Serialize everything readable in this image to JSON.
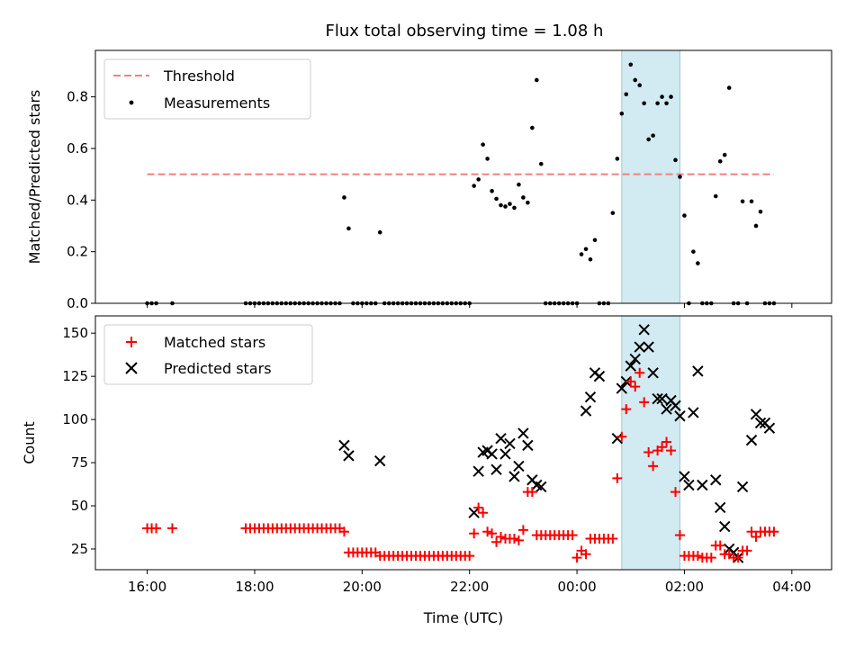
{
  "figure_title": "Flux total observing time = 1.08 h",
  "colors": {
    "threshold": "#f08080",
    "measurements": "#000000",
    "matched": "#ff0000",
    "predicted": "#000000",
    "span": "#add8e6"
  },
  "chart_data": [
    {
      "type": "scatter",
      "ylabel": "Matched/Predicted stars",
      "ylim": [
        0,
        0.98
      ],
      "yticks": [
        0.0,
        0.2,
        0.4,
        0.6,
        0.8
      ],
      "ytick_labels": [
        "0.0",
        "0.2",
        "0.4",
        "0.6",
        "0.8"
      ],
      "legend": {
        "placement": "upper-left",
        "entries": [
          "Threshold",
          "Measurements"
        ]
      },
      "threshold": {
        "name": "Threshold",
        "value": 0.5,
        "x_range": [
          "16:00",
          "03:40"
        ]
      },
      "highlight_span": [
        "00:50",
        "01:55"
      ],
      "series": [
        {
          "name": "Measurements",
          "x": [
            "16:00",
            "16:05",
            "16:10",
            "16:28",
            "17:50",
            "17:55",
            "18:00",
            "18:05",
            "18:10",
            "18:15",
            "18:20",
            "18:25",
            "18:30",
            "18:35",
            "18:40",
            "18:45",
            "18:50",
            "18:55",
            "19:00",
            "19:05",
            "19:10",
            "19:15",
            "19:20",
            "19:25",
            "19:30",
            "19:35",
            "19:40",
            "19:45",
            "19:50",
            "19:55",
            "20:00",
            "20:05",
            "20:10",
            "20:15",
            "20:20",
            "20:25",
            "20:30",
            "20:35",
            "20:40",
            "20:45",
            "20:50",
            "20:55",
            "21:00",
            "21:05",
            "21:10",
            "21:15",
            "21:20",
            "21:25",
            "21:30",
            "21:35",
            "21:40",
            "21:45",
            "21:50",
            "21:55",
            "22:00",
            "22:05",
            "22:10",
            "22:15",
            "22:20",
            "22:25",
            "22:30",
            "22:35",
            "22:40",
            "22:45",
            "22:50",
            "22:55",
            "23:00",
            "23:05",
            "23:10",
            "23:15",
            "23:20",
            "23:25",
            "23:30",
            "23:35",
            "23:40",
            "23:45",
            "23:50",
            "23:55",
            "00:00",
            "00:05",
            "00:10",
            "00:15",
            "00:20",
            "00:25",
            "00:30",
            "00:35",
            "00:40",
            "00:45",
            "00:50",
            "00:55",
            "01:00",
            "01:05",
            "01:10",
            "01:15",
            "01:20",
            "01:25",
            "01:30",
            "01:35",
            "01:40",
            "01:45",
            "01:50",
            "01:55",
            "02:00",
            "02:05",
            "02:10",
            "02:15",
            "02:20",
            "02:25",
            "02:30",
            "02:35",
            "02:40",
            "02:45",
            "02:50",
            "02:55",
            "03:00",
            "03:05",
            "03:10",
            "03:15",
            "03:20",
            "03:25",
            "03:30",
            "03:35",
            "03:40"
          ],
          "y": [
            0,
            0,
            0,
            0,
            0,
            0,
            0,
            0,
            0,
            0,
            0,
            0,
            0,
            0,
            0,
            0,
            0,
            0,
            0,
            0,
            0,
            0,
            0,
            0,
            0,
            0,
            0.41,
            0.29,
            0,
            0,
            0,
            0,
            0,
            0,
            0.275,
            0,
            0,
            0,
            0,
            0,
            0,
            0,
            0,
            0,
            0,
            0,
            0,
            0,
            0,
            0,
            0,
            0,
            0,
            0,
            0,
            0.455,
            0.48,
            0.615,
            0.56,
            0.435,
            0.405,
            0.38,
            0.375,
            0.385,
            0.37,
            0.46,
            0.41,
            0.39,
            0.68,
            0.865,
            0.54,
            0,
            0,
            0,
            0,
            0,
            0,
            0,
            0,
            0.19,
            0.21,
            0.17,
            0.245,
            0,
            0,
            0,
            0.35,
            0.56,
            0.735,
            0.81,
            0.925,
            0.865,
            0.845,
            0.775,
            0.635,
            0.65,
            0.775,
            0.8,
            0.775,
            0.8,
            0.555,
            0.49,
            0.34,
            0,
            0.2,
            0.155,
            0,
            0,
            0,
            0.415,
            0.55,
            0.575,
            0.835,
            0,
            0,
            0.395,
            0,
            0.395,
            0.3,
            0.355,
            0,
            0,
            0
          ]
        }
      ]
    },
    {
      "type": "scatter",
      "xlabel": "Time (UTC)",
      "ylabel": "Count",
      "ylim": [
        13,
        160
      ],
      "yticks": [
        25,
        50,
        75,
        100,
        125,
        150
      ],
      "ytick_labels": [
        "25",
        "50",
        "75",
        "100",
        "125",
        "150"
      ],
      "x_ticks": [
        "16:00",
        "18:00",
        "20:00",
        "22:00",
        "00:00",
        "02:00",
        "04:00"
      ],
      "legend": {
        "placement": "upper-left",
        "entries": [
          "Matched stars",
          "Predicted stars"
        ]
      },
      "highlight_span": [
        "00:50",
        "01:55"
      ],
      "series": [
        {
          "name": "Matched stars",
          "x": [
            "16:00",
            "16:05",
            "16:10",
            "16:28",
            "17:50",
            "17:55",
            "18:00",
            "18:05",
            "18:10",
            "18:15",
            "18:20",
            "18:25",
            "18:30",
            "18:35",
            "18:40",
            "18:45",
            "18:50",
            "18:55",
            "19:00",
            "19:05",
            "19:10",
            "19:15",
            "19:20",
            "19:25",
            "19:30",
            "19:35",
            "19:40",
            "19:45",
            "19:50",
            "19:55",
            "20:00",
            "20:05",
            "20:10",
            "20:15",
            "20:20",
            "20:25",
            "20:30",
            "20:35",
            "20:40",
            "20:45",
            "20:50",
            "20:55",
            "21:00",
            "21:05",
            "21:10",
            "21:15",
            "21:20",
            "21:25",
            "21:30",
            "21:35",
            "21:40",
            "21:45",
            "21:50",
            "21:55",
            "22:00",
            "22:05",
            "22:10",
            "22:15",
            "22:20",
            "22:25",
            "22:30",
            "22:35",
            "22:40",
            "22:45",
            "22:50",
            "22:55",
            "23:00",
            "23:05",
            "23:10",
            "23:15",
            "23:20",
            "23:25",
            "23:30",
            "23:35",
            "23:40",
            "23:45",
            "23:50",
            "23:55",
            "00:00",
            "00:05",
            "00:10",
            "00:15",
            "00:20",
            "00:25",
            "00:30",
            "00:35",
            "00:40",
            "00:45",
            "00:50",
            "00:55",
            "01:00",
            "01:05",
            "01:10",
            "01:15",
            "01:20",
            "01:25",
            "01:30",
            "01:35",
            "01:40",
            "01:45",
            "01:50",
            "01:55",
            "02:00",
            "02:05",
            "02:10",
            "02:15",
            "02:20",
            "02:25",
            "02:30",
            "02:35",
            "02:40",
            "02:45",
            "02:50",
            "02:55",
            "03:00",
            "03:05",
            "03:10",
            "03:15",
            "03:20",
            "03:25",
            "03:30",
            "03:35",
            "03:40"
          ],
          "y": [
            37,
            37,
            37,
            37,
            37,
            37,
            37,
            37,
            37,
            37,
            37,
            37,
            37,
            37,
            37,
            37,
            37,
            37,
            37,
            37,
            37,
            37,
            37,
            37,
            37,
            37,
            35,
            23,
            23,
            23,
            23,
            23,
            23,
            23,
            21,
            21,
            21,
            21,
            21,
            21,
            21,
            21,
            21,
            21,
            21,
            21,
            21,
            21,
            21,
            21,
            21,
            21,
            21,
            21,
            21,
            34,
            49,
            46,
            35,
            34,
            29,
            32,
            31,
            31,
            31,
            30,
            36,
            58,
            58,
            33,
            33,
            33,
            33,
            33,
            33,
            33,
            33,
            33,
            20,
            24,
            22,
            31,
            31,
            31,
            31,
            31,
            31,
            66,
            90,
            106,
            122,
            119,
            127,
            110,
            81,
            73,
            82,
            84,
            87,
            82,
            58,
            33,
            21,
            21,
            21,
            21,
            20,
            20,
            20,
            27,
            27,
            22,
            22,
            20,
            20,
            24,
            24,
            35,
            32,
            35,
            35,
            35,
            35
          ]
        },
        {
          "name": "Predicted stars",
          "x": [
            "19:40",
            "19:45",
            "20:20",
            "22:05",
            "22:10",
            "22:15",
            "22:20",
            "22:25",
            "22:30",
            "22:35",
            "22:40",
            "22:45",
            "22:50",
            "22:55",
            "23:00",
            "23:05",
            "23:10",
            "23:15",
            "23:20",
            "00:10",
            "00:15",
            "00:20",
            "00:25",
            "00:45",
            "00:50",
            "00:55",
            "01:00",
            "01:05",
            "01:10",
            "01:15",
            "01:20",
            "01:25",
            "01:30",
            "01:35",
            "01:40",
            "01:45",
            "01:50",
            "01:55",
            "02:00",
            "02:05",
            "02:10",
            "02:15",
            "02:20",
            "02:35",
            "02:40",
            "02:45",
            "02:50",
            "02:55",
            "03:00",
            "03:05",
            "03:15",
            "03:20",
            "03:25",
            "03:30",
            "03:35"
          ],
          "y": [
            85,
            79,
            76,
            46,
            70,
            81,
            82,
            80,
            71,
            89,
            80,
            86,
            67,
            73,
            92,
            85,
            65,
            62,
            61,
            105,
            113,
            127,
            125,
            89,
            118,
            122,
            131,
            135,
            142,
            152,
            142,
            127,
            112,
            112,
            106,
            111,
            108,
            102,
            67,
            62,
            104,
            128,
            62,
            65,
            49,
            38,
            25,
            23,
            20,
            61,
            88,
            103,
            98,
            98,
            95
          ]
        }
      ]
    }
  ]
}
